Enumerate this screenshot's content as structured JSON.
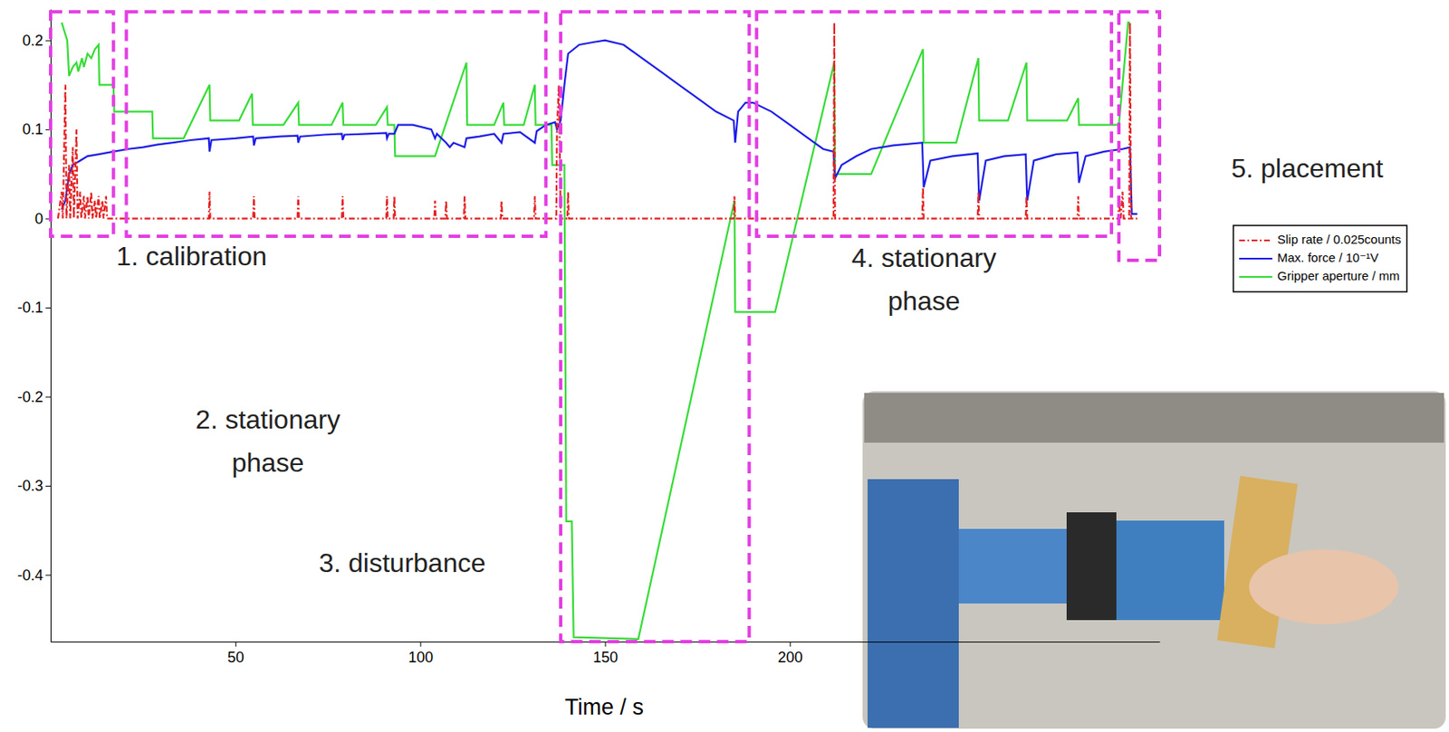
{
  "chart_data": {
    "type": "line",
    "x_label": "Time / s",
    "xlim": [
      0,
      300
    ],
    "xticks": [
      50,
      100,
      150,
      200
    ],
    "ylim": [
      -0.475,
      0.235
    ],
    "yticks": [
      -0.4,
      -0.3,
      -0.2,
      -0.1,
      0,
      0.1,
      0.2
    ],
    "grid": false,
    "legend": "right",
    "series": [
      {
        "name": "Slip rate / 0.025counts",
        "color": "#e62020",
        "line_style": "dashdot",
        "x": [
          2,
          3,
          3.3,
          4,
          4.3,
          5,
          5.3,
          6,
          6.3,
          7,
          7.3,
          8,
          8.3,
          9,
          9.3,
          10,
          10.3,
          11,
          11.3,
          12,
          12.3,
          13,
          13.3,
          14,
          14.3,
          15,
          15.3,
          42.8,
          43,
          43.2,
          54.8,
          55,
          55.2,
          66.8,
          67,
          67.2,
          78.8,
          79,
          79.2,
          90.8,
          91,
          91.2,
          92.8,
          93,
          93.2,
          103.8,
          104,
          104.2,
          106.8,
          107,
          107.2,
          111.8,
          112,
          112.2,
          121.8,
          122,
          122.2,
          130.8,
          131,
          131.2,
          136.8,
          137,
          137.5,
          138,
          139.8,
          140,
          140.2,
          184.8,
          185,
          185.2,
          211.8,
          212,
          212.2,
          235.8,
          236,
          236.2,
          250.8,
          251,
          251.2,
          263.8,
          264,
          264.2,
          277.8,
          278,
          278.2,
          288.8,
          289,
          289.5,
          290,
          290.3,
          291.8,
          292,
          292.3,
          294
        ],
        "values": [
          0,
          0.03,
          0,
          0.15,
          0,
          0.06,
          0,
          0.08,
          0,
          0.1,
          0,
          0.03,
          0,
          0.025,
          0,
          0.025,
          0,
          0.03,
          0,
          0.02,
          0,
          0.025,
          0,
          0.02,
          0,
          0.025,
          0,
          0,
          0.03,
          0,
          0,
          0.025,
          0,
          0,
          0.025,
          0,
          0,
          0.025,
          0,
          0,
          0.025,
          0,
          0,
          0.025,
          0,
          0,
          0.02,
          0,
          0,
          0.02,
          0,
          0,
          0.025,
          0,
          0,
          0.02,
          0,
          0,
          0.025,
          0,
          0,
          0.1,
          0.15,
          0,
          0,
          0.03,
          0,
          0,
          0.025,
          0,
          0,
          0.22,
          0,
          0,
          0.035,
          0,
          0,
          0.03,
          0,
          0,
          0.025,
          0,
          0,
          0.025,
          0,
          0,
          0.02,
          0,
          0.03,
          0,
          0,
          0.22,
          0,
          0
        ]
      },
      {
        "name": "Max. force / 10⁻¹V",
        "color": "#1c1ce8",
        "line_style": "solid",
        "x": [
          3,
          4,
          5,
          6,
          8,
          10,
          13,
          17,
          21,
          25,
          29,
          33,
          38,
          42.8,
          43,
          43.5,
          50,
          54.8,
          55,
          55.5,
          62,
          66.8,
          67,
          67.5,
          74,
          78.8,
          79,
          79.5,
          86,
          90.8,
          91,
          91.5,
          93,
          94,
          98,
          103,
          104,
          104.5,
          107,
          108,
          109,
          112,
          112.5,
          116,
          120,
          122,
          122.5,
          127,
          131,
          131.5,
          134,
          136.5,
          137,
          138,
          139,
          140,
          143,
          147,
          150,
          155,
          160,
          165,
          170,
          175,
          180,
          184.8,
          185.2,
          186,
          188,
          190,
          195,
          200,
          205,
          209,
          211.8,
          212.2,
          214,
          218,
          222,
          228,
          235.8,
          236.2,
          238,
          244,
          250.8,
          251.2,
          253,
          258,
          263.8,
          264.2,
          266,
          272,
          277.8,
          278.2,
          280,
          285,
          290,
          292,
          292.5,
          294
        ],
        "values": [
          0.01,
          0.02,
          0.05,
          0.06,
          0.065,
          0.07,
          0.072,
          0.075,
          0.078,
          0.08,
          0.083,
          0.085,
          0.088,
          0.09,
          0.075,
          0.088,
          0.09,
          0.092,
          0.082,
          0.09,
          0.092,
          0.093,
          0.085,
          0.092,
          0.094,
          0.095,
          0.088,
          0.094,
          0.095,
          0.096,
          0.09,
          0.095,
          0.095,
          0.105,
          0.105,
          0.1,
          0.09,
          0.095,
          0.085,
          0.08,
          0.085,
          0.08,
          0.09,
          0.092,
          0.095,
          0.085,
          0.095,
          0.097,
          0.085,
          0.098,
          0.105,
          0.108,
          0.1,
          0.11,
          0.15,
          0.185,
          0.195,
          0.198,
          0.2,
          0.195,
          0.18,
          0.165,
          0.15,
          0.135,
          0.12,
          0.11,
          0.085,
          0.12,
          0.13,
          0.13,
          0.12,
          0.105,
          0.09,
          0.078,
          0.075,
          0.045,
          0.06,
          0.07,
          0.078,
          0.082,
          0.085,
          0.035,
          0.065,
          0.07,
          0.073,
          0.02,
          0.065,
          0.07,
          0.072,
          0.02,
          0.065,
          0.072,
          0.074,
          0.04,
          0.07,
          0.075,
          0.078,
          0.08,
          0.005,
          0.005
        ]
      },
      {
        "name": "Gripper aperture / mm",
        "color": "#35dc35",
        "line_style": "solid",
        "x": [
          3,
          4.5,
          5,
          6,
          7,
          7.5,
          8.5,
          9,
          10,
          11,
          12,
          13,
          13.2,
          17,
          17.2,
          27.5,
          27.7,
          36,
          43,
          43.2,
          51,
          54.5,
          54.7,
          63,
          67,
          67.2,
          76,
          79,
          79.2,
          88,
          91,
          91.2,
          93,
          93.2,
          104,
          112.5,
          112.7,
          120,
          122.5,
          122.7,
          128,
          131,
          131.2,
          135.5,
          135.7,
          139,
          139.5,
          141,
          141.5,
          159,
          185,
          185.2,
          196,
          212,
          212.2,
          222,
          236,
          236.2,
          245,
          251,
          251.2,
          259,
          264,
          264.2,
          275,
          278,
          278.2,
          289,
          291.5,
          292
        ],
        "values": [
          0.22,
          0.2,
          0.16,
          0.17,
          0.175,
          0.165,
          0.18,
          0.17,
          0.185,
          0.18,
          0.19,
          0.195,
          0.15,
          0.15,
          0.12,
          0.12,
          0.09,
          0.09,
          0.15,
          0.11,
          0.11,
          0.14,
          0.105,
          0.105,
          0.13,
          0.105,
          0.105,
          0.13,
          0.105,
          0.105,
          0.125,
          0.105,
          0.105,
          0.07,
          0.07,
          0.175,
          0.105,
          0.105,
          0.13,
          0.105,
          0.105,
          0.15,
          0.105,
          0.105,
          0.06,
          0.06,
          -0.34,
          -0.34,
          -0.47,
          -0.472,
          0.02,
          -0.105,
          -0.105,
          0.175,
          0.05,
          0.05,
          0.19,
          0.085,
          0.085,
          0.18,
          0.11,
          0.11,
          0.175,
          0.11,
          0.11,
          0.135,
          0.105,
          0.105,
          0.22,
          0.22
        ]
      }
    ],
    "phases": [
      {
        "label_lines": [
          "1. calibration"
        ],
        "start": 0,
        "end": 17,
        "ymin": -0.02,
        "ymax": 0.232
      },
      {
        "label_lines": [
          "2. stationary",
          "phase"
        ],
        "start": 20.5,
        "end": 134,
        "ymin": -0.02,
        "ymax": 0.232
      },
      {
        "label_lines": [
          "3. disturbance"
        ],
        "start": 138,
        "end": 189,
        "ymin": -0.475,
        "ymax": 0.232
      },
      {
        "label_lines": [
          "4. stationary",
          "phase"
        ],
        "start": 191,
        "end": 287,
        "ymin": -0.02,
        "ymax": 0.232
      },
      {
        "label_lines": [
          "5. placement"
        ],
        "start": 289,
        "end": 300,
        "ymin": -0.047,
        "ymax": 0.232
      }
    ]
  }
}
